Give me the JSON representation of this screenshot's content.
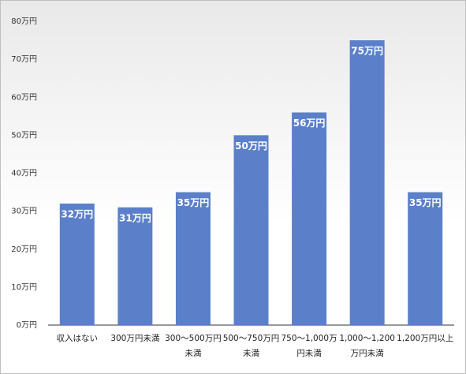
{
  "chart_data": {
    "type": "bar",
    "categories": [
      "収入はない",
      "300万円未満",
      "300～500万円未満",
      "500～750万円未満",
      "750～1,000万円未満",
      "1,000～1,200万円未満",
      "1,200万円以上"
    ],
    "values": [
      32,
      31,
      35,
      50,
      56,
      75,
      35
    ],
    "value_labels": [
      "32万円",
      "31万円",
      "35万円",
      "50万円",
      "56万円",
      "75万円",
      "35万円"
    ],
    "color": "#5b80c9",
    "ylim": [
      0,
      80
    ],
    "yticks": [
      {
        "value": 0,
        "label": "0万円"
      },
      {
        "value": 10,
        "label": "10万円"
      },
      {
        "value": 20,
        "label": "20万円"
      },
      {
        "value": 30,
        "label": "30万円"
      },
      {
        "value": 40,
        "label": "40万円"
      },
      {
        "value": 50,
        "label": "50万円"
      },
      {
        "value": 60,
        "label": "60万円"
      },
      {
        "value": 70,
        "label": "70万円"
      },
      {
        "value": 80,
        "label": "80万円"
      }
    ],
    "grid": false
  }
}
